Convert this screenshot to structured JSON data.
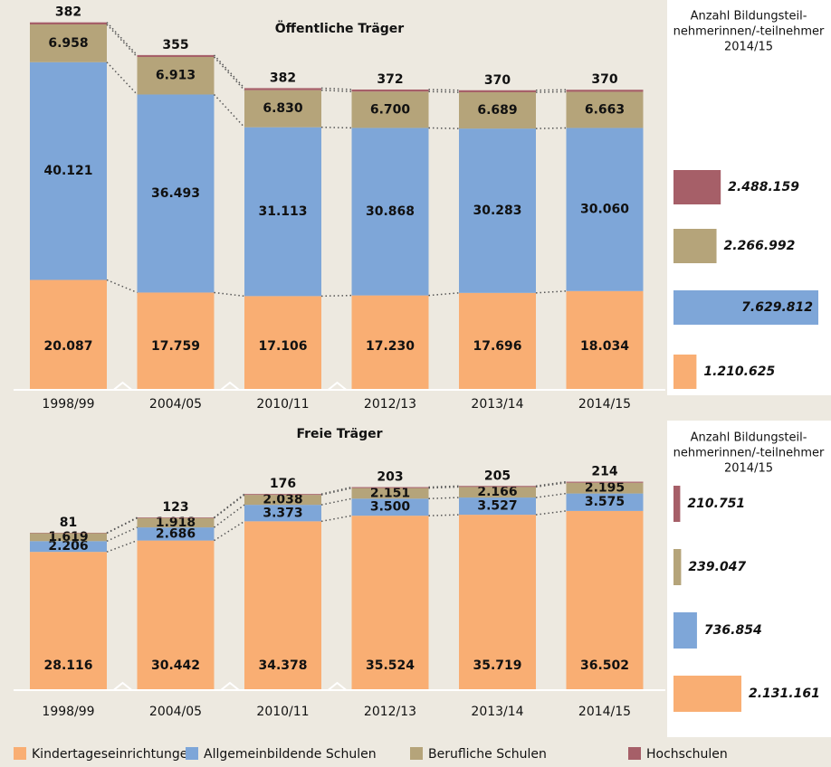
{
  "chart_data": [
    {
      "type": "bar",
      "stacked": true,
      "title": "Öffentliche Träger",
      "categories": [
        "1998/99",
        "2004/05",
        "2010/11",
        "2012/13",
        "2013/14",
        "2014/15"
      ],
      "series": [
        {
          "name": "Kindertageseinrichtungen",
          "color": "#f9ae73",
          "values": [
            20087,
            17759,
            17106,
            17230,
            17696,
            18034
          ],
          "value_labels": [
            "20.087",
            "17.759",
            "17.106",
            "17.230",
            "17.696",
            "18.034"
          ]
        },
        {
          "name": "Allgemeinbildende Schulen",
          "color": "#7ea6d8",
          "values": [
            40121,
            36493,
            31113,
            30868,
            30283,
            30060
          ],
          "value_labels": [
            "40.121",
            "36.493",
            "31.113",
            "30.868",
            "30.283",
            "30.060"
          ]
        },
        {
          "name": "Berufliche Schulen",
          "color": "#b5a47a",
          "values": [
            6958,
            6913,
            6830,
            6700,
            6689,
            6663
          ],
          "value_labels": [
            "6.958",
            "6.913",
            "6.830",
            "6.700",
            "6.689",
            "6.663"
          ]
        },
        {
          "name": "Hochschulen",
          "color": "#a65f68",
          "values": [
            382,
            355,
            382,
            372,
            370,
            370
          ],
          "value_labels": [
            "382",
            "355",
            "382",
            "372",
            "370",
            "370"
          ]
        }
      ],
      "participants": {
        "title_lines": [
          "Anzahl Bildungsteil-",
          "nehmerinnen/-teilnehmer",
          "2014/15"
        ],
        "values": [
          1210625,
          7629812,
          2266992,
          2488159
        ],
        "value_labels": [
          "1.210.625",
          "7.629.812",
          "2.266.992",
          "2.488.159"
        ]
      }
    },
    {
      "type": "bar",
      "stacked": true,
      "title": "Freie Träger",
      "categories": [
        "1998/99",
        "2004/05",
        "2010/11",
        "2012/13",
        "2013/14",
        "2014/15"
      ],
      "series": [
        {
          "color": "#f9ae73",
          "values": [
            28116,
            30442,
            34378,
            35524,
            35719,
            36502
          ],
          "value_labels": [
            "28.116",
            "30.442",
            "34.378",
            "35.524",
            "35.719",
            "36.502"
          ]
        },
        {
          "color": "#7ea6d8",
          "values": [
            2206,
            2686,
            3373,
            3500,
            3527,
            3575
          ],
          "value_labels": [
            "2.206",
            "2.686",
            "3.373",
            "3.500",
            "3.527",
            "3.575"
          ]
        },
        {
          "color": "#b5a47a",
          "values": [
            1619,
            1918,
            2038,
            2151,
            2166,
            2195
          ],
          "value_labels": [
            "1.619",
            "1.918",
            "2.038",
            "2.151",
            "2.166",
            "2.195"
          ]
        },
        {
          "color": "#a65f68",
          "values": [
            81,
            123,
            176,
            203,
            205,
            214
          ],
          "value_labels": [
            "81",
            "123",
            "176",
            "203",
            "205",
            "214"
          ]
        }
      ],
      "participants": {
        "title_lines": [
          "Anzahl Bildungsteil-",
          "nehmerinnen/-teilnehmer",
          "2014/15"
        ],
        "values": [
          2131161,
          736854,
          239047,
          210751
        ],
        "value_labels": [
          "2.131.161",
          "736.854",
          "239.047",
          "210.751"
        ]
      }
    }
  ]
}
